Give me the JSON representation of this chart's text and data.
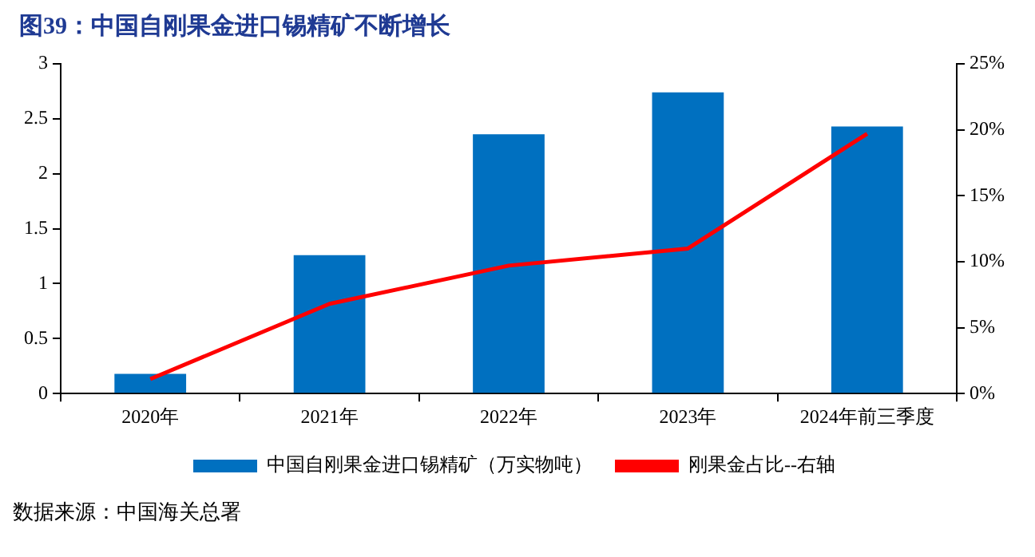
{
  "chart_data": {
    "type": "bar",
    "title": "图39：中国自刚果金进口锡精矿不断增长",
    "categories": [
      "2020年",
      "2021年",
      "2022年",
      "2023年",
      "2024年前三季度"
    ],
    "series": [
      {
        "name": "中国自刚果金进口锡精矿（万实物吨）",
        "color": "#0070c0",
        "values": [
          0.18,
          1.26,
          2.36,
          2.74,
          2.43
        ]
      },
      {
        "name": "刚果金占比--右轴",
        "type": "line",
        "axis": "y2",
        "color": "#ff0000",
        "values": [
          1.1,
          6.8,
          9.7,
          11.0,
          19.7
        ]
      }
    ],
    "ylim": [
      0,
      3
    ],
    "yticks": [
      0,
      0.5,
      1,
      1.5,
      2,
      2.5,
      3
    ],
    "y2lim": [
      0,
      25
    ],
    "y2ticks": [
      {
        "value": 0,
        "label": "0%"
      },
      {
        "value": 5,
        "label": "5%"
      },
      {
        "value": 10,
        "label": "10%"
      },
      {
        "value": 15,
        "label": "15%"
      },
      {
        "value": 20,
        "label": "20%"
      },
      {
        "value": 25,
        "label": "25%"
      }
    ],
    "grid": false,
    "legend": "bottom",
    "marker": "none",
    "annotations": [
      "数据来源：中国海关总署"
    ]
  }
}
